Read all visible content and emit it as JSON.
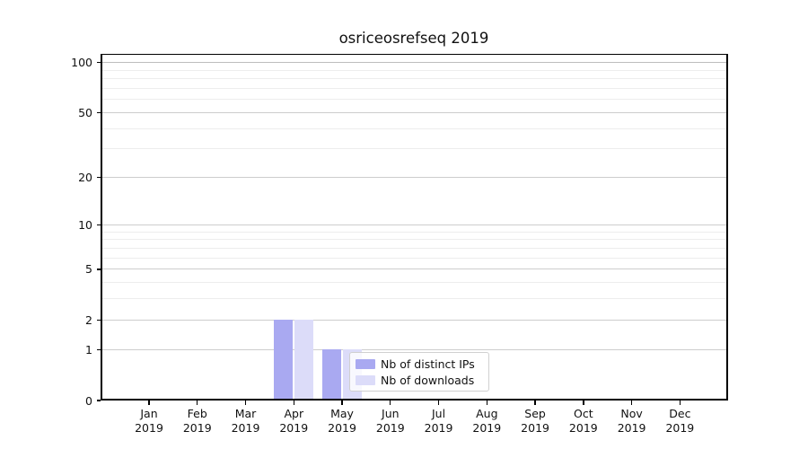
{
  "chart_data": {
    "type": "bar",
    "title": "osriceosrefseq 2019",
    "categories": [
      "Jan",
      "Feb",
      "Mar",
      "Apr",
      "May",
      "Jun",
      "Jul",
      "Aug",
      "Sep",
      "Oct",
      "Nov",
      "Dec"
    ],
    "x_year_label": "2019",
    "series": [
      {
        "name": "Nb of distinct IPs",
        "color": "#a9a9f1",
        "values": [
          0,
          0,
          0,
          2,
          1,
          0,
          0,
          0,
          0,
          0,
          0,
          0
        ]
      },
      {
        "name": "Nb of downloads",
        "color": "#dcdcf9",
        "values": [
          0,
          0,
          0,
          2,
          1,
          0,
          0,
          0,
          0,
          0,
          0,
          0
        ]
      }
    ],
    "yscale": "log1p",
    "ylim": [
      0,
      112
    ],
    "yticks_major": [
      0,
      1,
      2,
      5,
      10,
      20,
      50,
      100
    ],
    "yticks_minor": [
      3,
      4,
      6,
      7,
      8,
      9,
      30,
      40,
      60,
      70,
      80,
      90
    ],
    "grid": "both",
    "legend_position": "inside-lower-center"
  },
  "colors": {
    "grid_major": "#cdcdcd",
    "grid_minor": "#ededed",
    "grid_100": "#bdbdbd",
    "axis_spine": "#000000",
    "legend_border": "#d0d0d0",
    "text": "#111111"
  }
}
